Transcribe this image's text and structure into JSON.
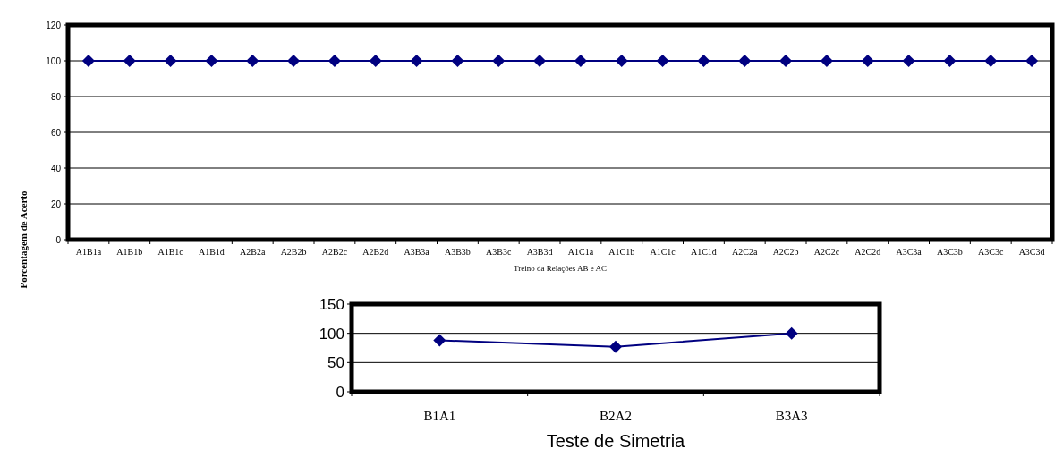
{
  "chart_data": [
    {
      "type": "line",
      "xlabel": "Treino da Relações AB e AC",
      "ylabel": "Porcentagem de Acerto",
      "categories": [
        "A1B1a",
        "A1B1b",
        "A1B1c",
        "A1B1d",
        "A2B2a",
        "A2B2b",
        "A2B2c",
        "A2B2d",
        "A3B3a",
        "A3B3b",
        "A3B3c",
        "A3B3d",
        "A1C1a",
        "A1C1b",
        "A1C1c",
        "A1C1d",
        "A2C2a",
        "A2C2b",
        "A2C2c",
        "A2C2d",
        "A3C3a",
        "A3C3b",
        "A3C3c",
        "A3C3d"
      ],
      "series": [
        {
          "color": "#000080",
          "values": [
            100,
            100,
            100,
            100,
            100,
            100,
            100,
            100,
            100,
            100,
            100,
            100,
            100,
            100,
            100,
            100,
            100,
            100,
            100,
            100,
            100,
            100,
            100,
            100
          ]
        }
      ],
      "ylim": [
        0,
        120
      ],
      "yticks": [
        0,
        20,
        40,
        60,
        80,
        100,
        120
      ],
      "grid": "y",
      "marker": "diamond"
    },
    {
      "type": "line",
      "xlabel": "Teste de Simetria",
      "categories": [
        "B1A1",
        "B2A2",
        "B3A3"
      ],
      "series": [
        {
          "color": "#000080",
          "values": [
            88,
            77,
            100
          ]
        }
      ],
      "ylim": [
        0,
        150
      ],
      "yticks": [
        0,
        50,
        100,
        150
      ],
      "grid": "y",
      "marker": "diamond"
    }
  ]
}
